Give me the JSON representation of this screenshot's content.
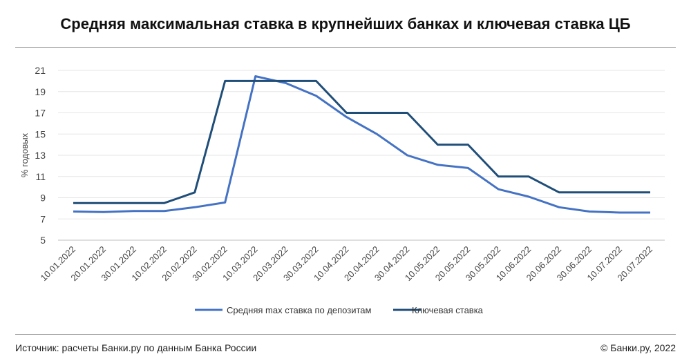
{
  "title": "Средняя максимальная ставка в крупнейших банках и ключевая ставка ЦБ",
  "footer": {
    "source": "Источник: расчеты Банки.ру по данным Банка России",
    "copyright": "© Банки.ру, 2022"
  },
  "chart_data": {
    "type": "line",
    "ylabel": "% годовых",
    "ylim": [
      5,
      21
    ],
    "yticks": [
      5,
      7,
      9,
      11,
      13,
      15,
      17,
      19,
      21
    ],
    "grid": true,
    "legend": "bottom",
    "categories": [
      "10.01.2022",
      "20.01.2022",
      "30.01.2022",
      "10.02.2022",
      "20.02.2022",
      "30.02.2022",
      "10.03.2022",
      "20.03.2022",
      "30.03.2022",
      "10.04.2022",
      "20.04.2022",
      "30.04.2022",
      "10.05.2022",
      "20.05.2022",
      "30.05.2022",
      "10.06.2022",
      "20.06.2022",
      "30.06.2022",
      "10.07.2022",
      "20.07.2022"
    ],
    "series": [
      {
        "name": "Средняя max ставка по депозитам",
        "color": "#4472c4",
        "values": [
          7.7,
          7.65,
          7.75,
          7.75,
          8.1,
          8.55,
          20.45,
          19.8,
          18.6,
          16.6,
          15.0,
          13.0,
          12.1,
          11.8,
          9.8,
          9.1,
          8.1,
          7.7,
          7.6,
          7.6
        ]
      },
      {
        "name": "Ключевая ставка",
        "color": "#1f4e79",
        "values": [
          8.5,
          8.5,
          8.5,
          8.5,
          9.5,
          20,
          20,
          20,
          20,
          17,
          17,
          17,
          14,
          14,
          11,
          11,
          9.5,
          9.5,
          9.5,
          9.5
        ]
      }
    ]
  }
}
